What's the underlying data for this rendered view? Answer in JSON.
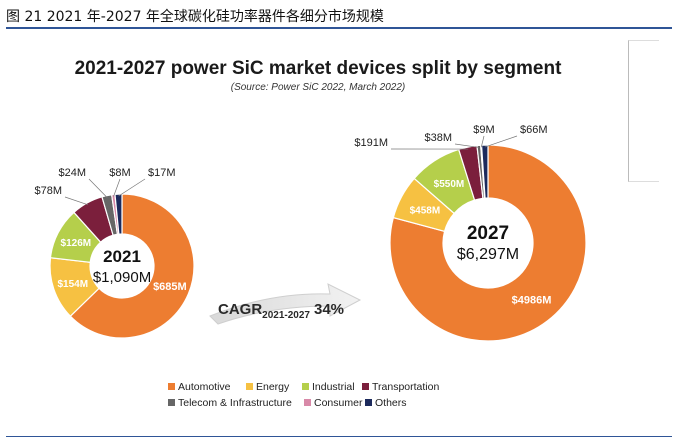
{
  "caption": "图 21 2021 年-2027 年全球碳化硅功率器件各细分市场规模",
  "chart_data": {
    "type": "pie",
    "title": "2021-2027 power SiC market devices split by segment",
    "subtitle": "(Source: Power SiC 2022, March 2022)",
    "cagr_label": "CAGR",
    "cagr_sub": "2021-2027",
    "cagr_value": "34%",
    "legend": [
      {
        "name": "Automotive",
        "color": "#ed7d31"
      },
      {
        "name": "Energy",
        "color": "#f6c142"
      },
      {
        "name": "Industrial",
        "color": "#b5cf4b"
      },
      {
        "name": "Transportation",
        "color": "#7b1f3c"
      },
      {
        "name": "Telecom & Infrastructure",
        "color": "#666666"
      },
      {
        "name": "Consumer",
        "color": "#d889a8"
      },
      {
        "name": "Others",
        "color": "#1c2a5c"
      }
    ],
    "donuts": [
      {
        "year": "2021",
        "total": "$1,090M",
        "values": [
          685,
          154,
          126,
          78,
          24,
          8,
          17
        ],
        "labels": [
          "$685M",
          "$154M",
          "$126M",
          "$78M",
          "$24M",
          "$8M",
          "$17M"
        ]
      },
      {
        "year": "2027",
        "total": "$6,297M",
        "values": [
          4986,
          458,
          550,
          191,
          38,
          9,
          66
        ],
        "labels": [
          "$4986M",
          "$458M",
          "$550M",
          "$191M",
          "$38M",
          "$9M",
          "$66M"
        ]
      }
    ]
  }
}
